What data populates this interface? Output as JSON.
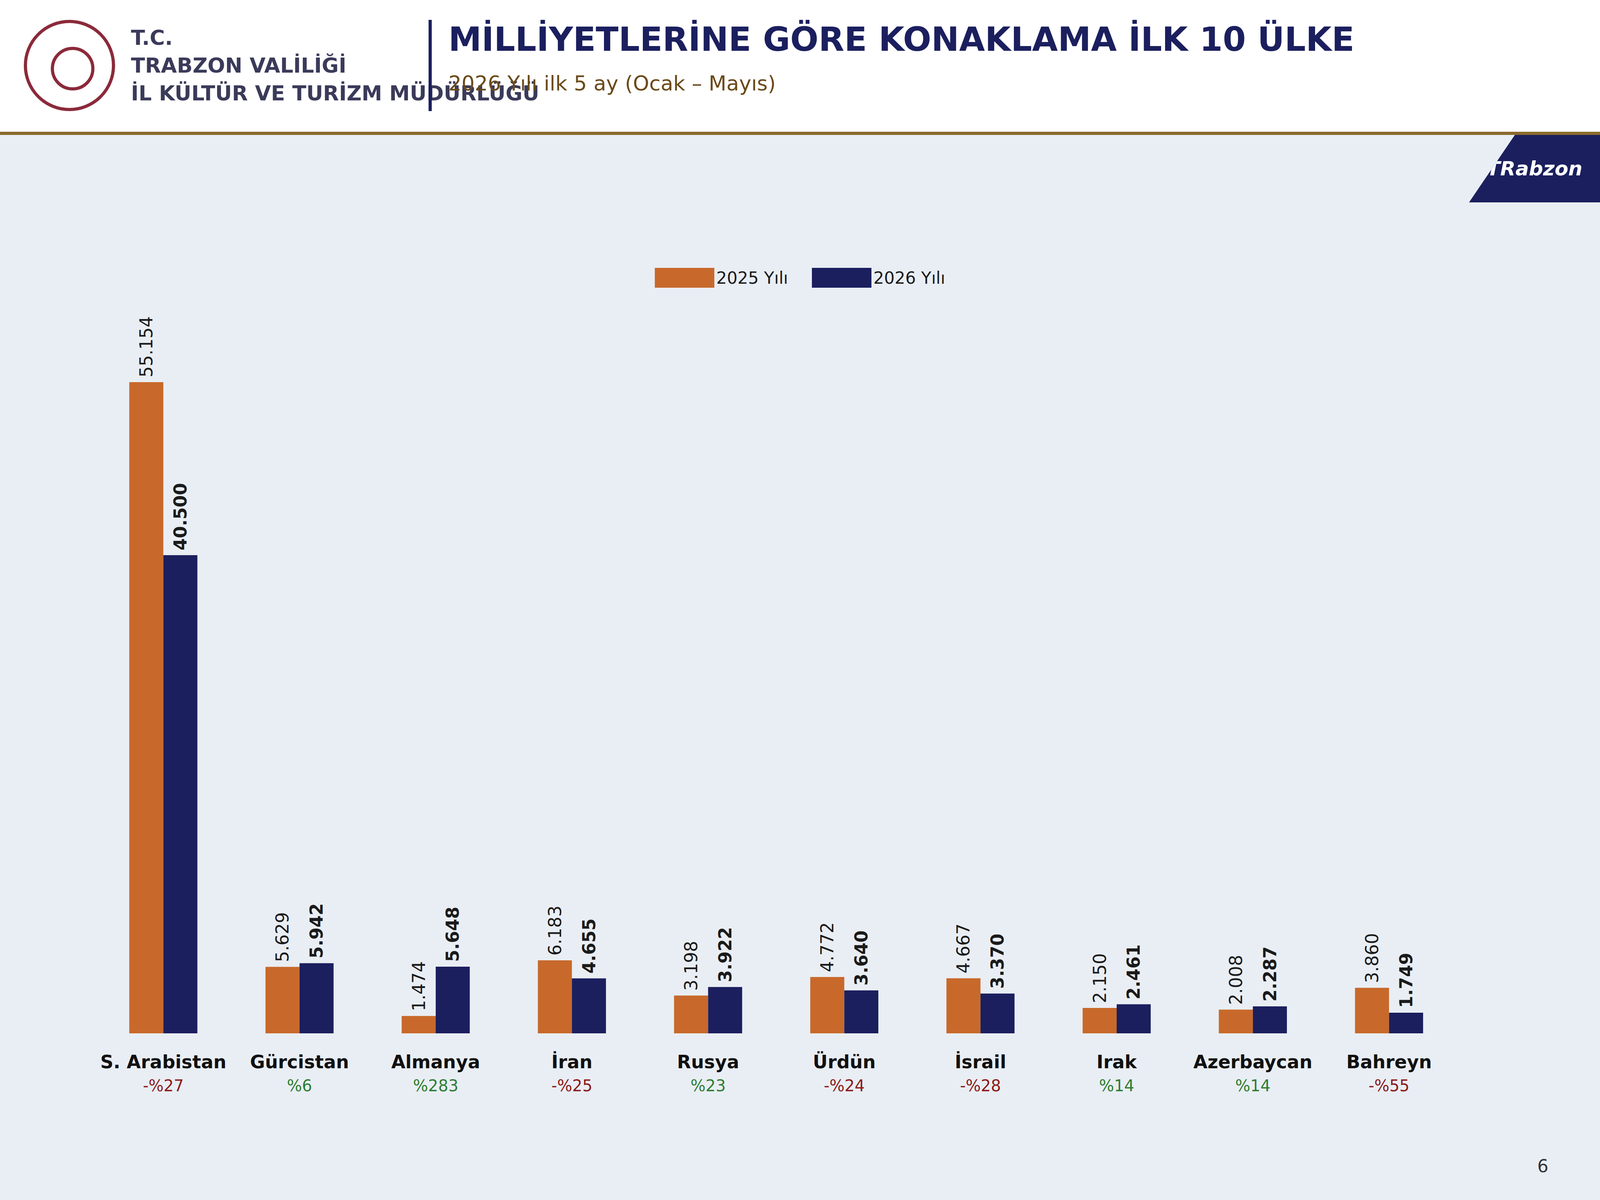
{
  "header": {
    "org_lines": [
      "T.C.",
      "TRABZON VALİLİĞİ",
      "İL KÜLTÜR VE TURİZM MÜDÜRLÜĞÜ"
    ],
    "logo_text": "TRabzon",
    "page_number": "6"
  },
  "chart_data": {
    "type": "bar",
    "title": "MİLLİYETLERİNE GÖRE KONAKLAMA İLK 10 ÜLKE",
    "subtitle": "2026 Yılı ilk 5 ay (Ocak – Mayıs)",
    "categories": [
      "S. Arabistan",
      "Gürcistan",
      "Almanya",
      "İran",
      "Rusya",
      "Ürdün",
      "İsrail",
      "Irak",
      "Azerbaycan",
      "Bahreyn"
    ],
    "changes": [
      "-%27",
      "%6",
      "%283",
      "-%25",
      "%23",
      "-%24",
      "-%28",
      "%14",
      "%14",
      "-%55"
    ],
    "series": [
      {
        "name": "2025 Yılı",
        "color": "#c8692b",
        "values": [
          55154,
          5629,
          1474,
          6183,
          3198,
          4772,
          4667,
          2150,
          2008,
          3860
        ],
        "value_labels": [
          "55.154",
          "5.629",
          "1.474",
          "6.183",
          "3.198",
          "4.772",
          "4.667",
          "2.150",
          "2.008",
          "3.860"
        ]
      },
      {
        "name": "2026 Yılı",
        "color": "#1b1f5e",
        "values": [
          40500,
          5942,
          5648,
          4655,
          3922,
          3640,
          3370,
          2461,
          2287,
          1749
        ],
        "value_labels": [
          "40.500",
          "5.942",
          "5.648",
          "4.655",
          "3.922",
          "3.640",
          "3.370",
          "2.461",
          "2.287",
          "1.749"
        ]
      }
    ],
    "ylim": [
      0,
      65000
    ],
    "yticks": [],
    "tick_labels": "x",
    "grid": false,
    "legend": "top",
    "data_labels": true
  }
}
